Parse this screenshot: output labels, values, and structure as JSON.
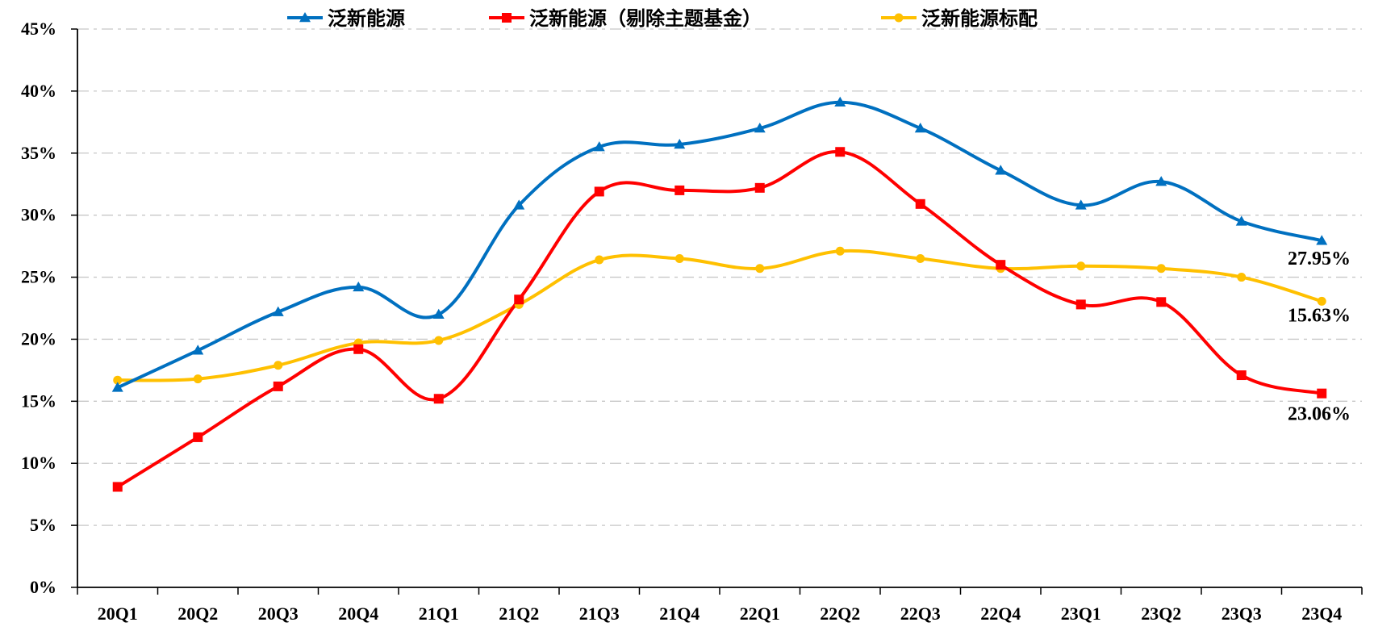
{
  "chart_data": {
    "type": "line",
    "title": "",
    "xlabel": "",
    "ylabel": "",
    "categories": [
      "20Q1",
      "20Q2",
      "20Q3",
      "20Q4",
      "21Q1",
      "21Q2",
      "21Q3",
      "21Q4",
      "22Q1",
      "22Q2",
      "22Q3",
      "22Q4",
      "23Q1",
      "23Q2",
      "23Q3",
      "23Q4"
    ],
    "ylim": [
      0,
      45
    ],
    "y_ticks": [
      "0%",
      "5%",
      "10%",
      "15%",
      "20%",
      "25%",
      "30%",
      "35%",
      "40%",
      "45%"
    ],
    "y_unit": "%",
    "grid": "horizontal dashed",
    "legend_position": "top",
    "smooth": true,
    "series": [
      {
        "name": "泛新能源",
        "color": "#0070C0",
        "marker": "triangle",
        "values": [
          16.1,
          19.1,
          22.2,
          24.2,
          22.0,
          30.8,
          35.5,
          35.7,
          37.0,
          39.1,
          37.0,
          33.6,
          30.8,
          32.7,
          29.5,
          27.95
        ]
      },
      {
        "name": "泛新能源（剔除主题基金）",
        "color": "#FF0000",
        "marker": "square",
        "values": [
          8.1,
          12.1,
          16.2,
          19.2,
          15.2,
          23.2,
          31.9,
          32.0,
          32.2,
          35.1,
          30.9,
          26.0,
          22.8,
          23.0,
          17.1,
          15.63
        ]
      },
      {
        "name": "泛新能源标配",
        "color": "#FFC000",
        "marker": "circle",
        "values": [
          16.7,
          16.8,
          17.9,
          19.7,
          19.9,
          22.8,
          26.4,
          26.5,
          25.7,
          27.1,
          26.5,
          25.7,
          25.9,
          25.7,
          25.0,
          23.06
        ]
      }
    ],
    "annotations": [
      "27.95%",
      "23.06%",
      "15.63%"
    ]
  }
}
